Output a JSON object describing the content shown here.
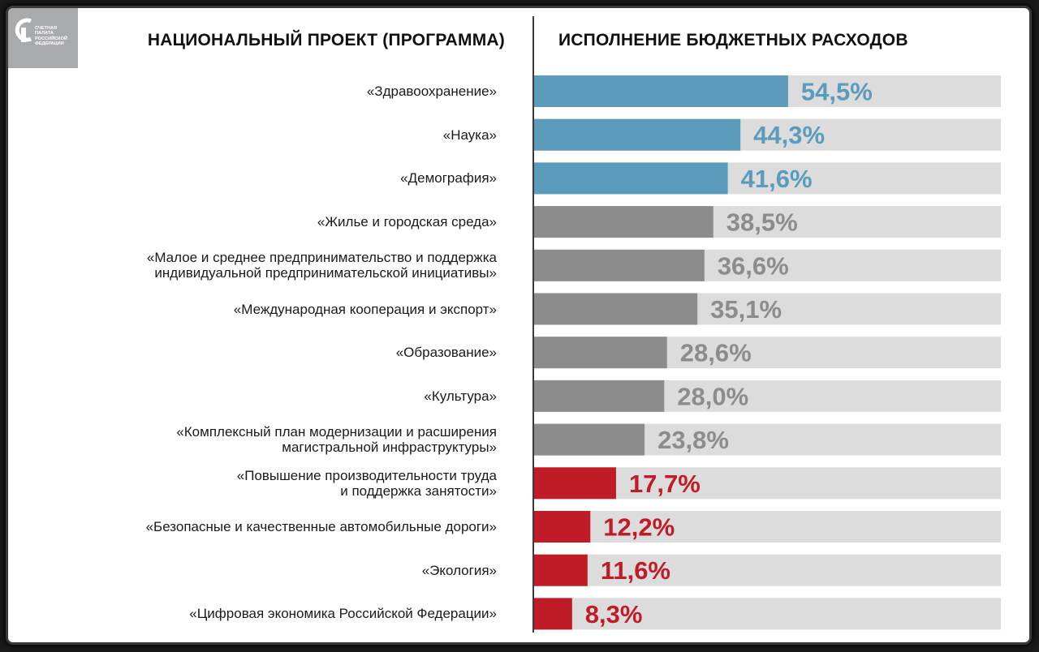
{
  "logo": {
    "text_lines": [
      "СЧЕТНАЯ",
      "ПАЛАТА",
      "РОССИЙСКОЙ",
      "ФЕДЕРАЦИИ"
    ]
  },
  "chart_data": {
    "type": "bar",
    "orientation": "horizontal",
    "category_header": "НАЦИОНАЛЬНЫЙ ПРОЕКТ (ПРОГРАММА)",
    "value_header": "ИСПОЛНЕНИЕ БЮДЖЕТНЫХ РАСХОДОВ",
    "xlim": [
      0,
      100
    ],
    "colors": {
      "high": "#5b9bbb",
      "mid": "#8c8c8c",
      "low": "#c01c28",
      "track": "#dcdcdc"
    },
    "categories": [
      [
        "«Здравоохранение»"
      ],
      [
        "«Наука»"
      ],
      [
        "«Демография»"
      ],
      [
        "«Жилье и городская среда»"
      ],
      [
        "«Малое и среднее предпринимательство и поддержка",
        "индивидуальной предпринимательской инициативы»"
      ],
      [
        "«Международная кооперация и экспорт»"
      ],
      [
        "«Образование»"
      ],
      [
        "«Культура»"
      ],
      [
        "«Комплексный план модернизации и расширения",
        "магистральной инфраструктуры»"
      ],
      [
        "«Повышение производительности труда",
        "и поддержка занятости»"
      ],
      [
        "«Безопасные и качественные автомобильные дороги»"
      ],
      [
        "«Экология»"
      ],
      [
        "«Цифровая экономика Российской Федерации»"
      ]
    ],
    "values": [
      54.5,
      44.3,
      41.6,
      38.5,
      36.6,
      35.1,
      28.6,
      28.0,
      23.8,
      17.7,
      12.2,
      11.6,
      8.3
    ],
    "value_labels": [
      "54,5%",
      "44,3%",
      "41,6%",
      "38,5%",
      "36,6%",
      "35,1%",
      "28,6%",
      "28,0%",
      "23,8%",
      "17,7%",
      "12,2%",
      "11,6%",
      "8,3%"
    ],
    "color_groups": [
      "high",
      "high",
      "high",
      "mid",
      "mid",
      "mid",
      "mid",
      "mid",
      "mid",
      "low",
      "low",
      "low",
      "low"
    ]
  }
}
